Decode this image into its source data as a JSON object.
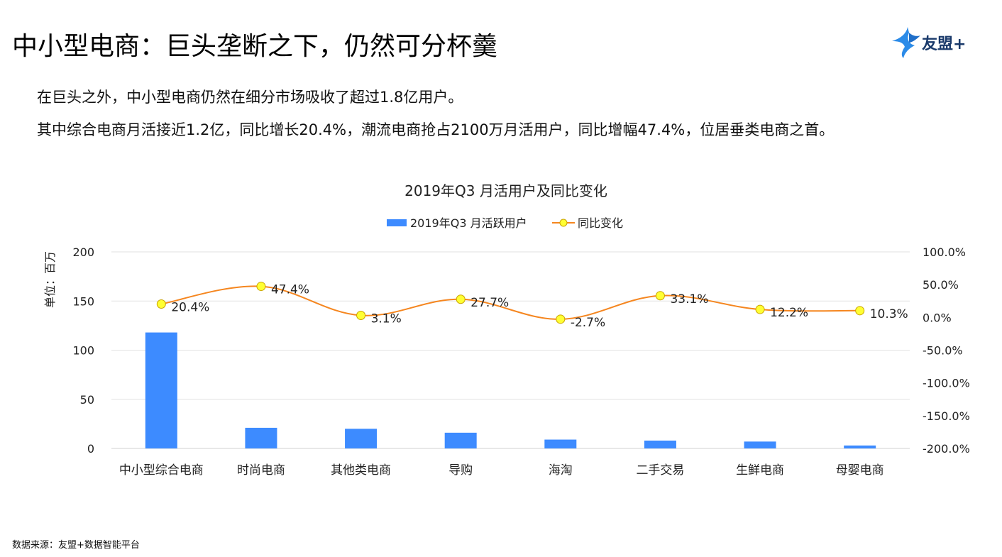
{
  "page": {
    "title": "中小型电商：巨头垄断之下，仍然可分杯羹",
    "logo_text": "友盟+",
    "desc_line1": "在巨头之外，中小型电商仍然在细分市场吸收了超过1.8亿用户。",
    "desc_line2": "其中综合电商月活接近1.2亿，同比增长20.4%，潮流电商抢占2100万月活用户，同比增幅47.4%，位居垂类电商之首。",
    "source": "数据来源：友盟+数据智能平台"
  },
  "chart_data": {
    "type": "bar",
    "title": "2019年Q3 月活用户及同比变化",
    "ylabel": "单位：百万",
    "categories": [
      "中小型综合电商",
      "时尚电商",
      "其他类电商",
      "导购",
      "海淘",
      "二手交易",
      "生鲜电商",
      "母婴电商"
    ],
    "series": [
      {
        "name": "2019年Q3 月活跃用户",
        "type": "bar",
        "axis": "left",
        "values": [
          118,
          21,
          20,
          16,
          9,
          8,
          7,
          3
        ]
      },
      {
        "name": "同比变化",
        "type": "line",
        "axis": "right",
        "values": [
          20.4,
          47.4,
          3.1,
          27.7,
          -2.7,
          33.1,
          12.2,
          10.3
        ],
        "labels": [
          "20.4%",
          "47.4%",
          "3.1%",
          "27.7%",
          "-2.7%",
          "33.1%",
          "12.2%",
          "10.3%"
        ]
      }
    ],
    "ylim": [
      0,
      200
    ],
    "y_ticks": [
      0,
      50,
      100,
      150,
      200
    ],
    "y2lim": [
      -200,
      100
    ],
    "y2_ticks": [
      "-200.0%",
      "-150.0%",
      "-100.0%",
      "-50.0%",
      "0.0%",
      "50.0%",
      "100.0%"
    ],
    "y2_tick_values": [
      -200,
      -150,
      -100,
      -50,
      0,
      50,
      100
    ],
    "grid": true,
    "legend": "top-center",
    "colors": {
      "bar": "#3d8bff",
      "line": "#f5861f",
      "marker_fill": "#ffff33",
      "marker_stroke": "#c9a400"
    }
  }
}
